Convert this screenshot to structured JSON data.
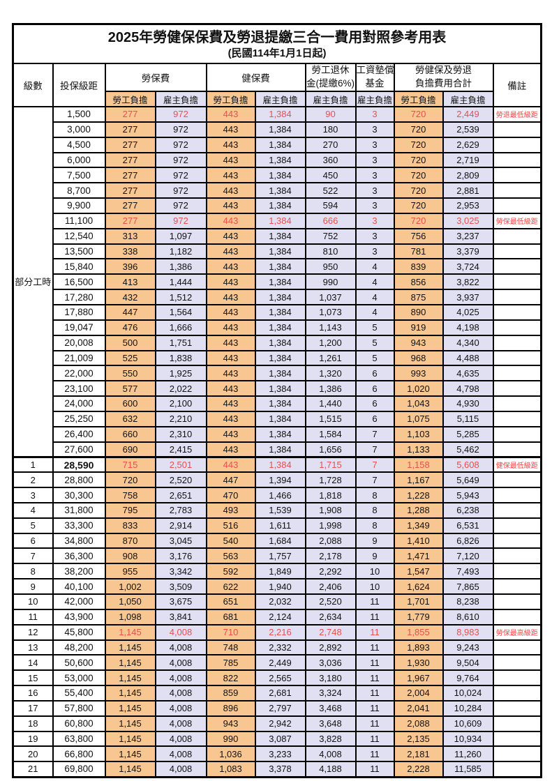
{
  "title": "2025年勞健保保費及勞退提繳三合一費用對照參考用表",
  "subtitle": "(民國114年1月1日起)",
  "header": {
    "level": "級數",
    "salary": "投保級距",
    "labor_ins": "勞保費",
    "health_ins": "健保費",
    "pension_line1": "勞工退休",
    "pension_line2": "金(提繳6%)",
    "wage_fund_line1": "工資墊償",
    "wage_fund_line2": "基金",
    "total_line1": "勞健保及勞退",
    "total_line2": "負擔費用合計",
    "remark": "備註",
    "worker": "勞工負擔",
    "employer": "雇主負擔"
  },
  "part_time_label": "部分工時",
  "part_time_rowspan": 23,
  "colors": {
    "worker_bg": "#F8C690",
    "employer_bg": "#E0E0F2",
    "highlight_red": "#E6504E",
    "remark_red": "#F34343"
  },
  "rows": [
    {
      "level": "",
      "salary": "1,500",
      "values": [
        "277",
        "972",
        "443",
        "1,384",
        "90",
        "3",
        "720",
        "2,449"
      ],
      "remark": "勞退最低級距",
      "red": true
    },
    {
      "level": "",
      "salary": "3,000",
      "values": [
        "277",
        "972",
        "443",
        "1,384",
        "180",
        "3",
        "720",
        "2,539"
      ],
      "remark": "",
      "red": false
    },
    {
      "level": "",
      "salary": "4,500",
      "values": [
        "277",
        "972",
        "443",
        "1,384",
        "270",
        "3",
        "720",
        "2,629"
      ],
      "remark": "",
      "red": false
    },
    {
      "level": "",
      "salary": "6,000",
      "values": [
        "277",
        "972",
        "443",
        "1,384",
        "360",
        "3",
        "720",
        "2,719"
      ],
      "remark": "",
      "red": false
    },
    {
      "level": "",
      "salary": "7,500",
      "values": [
        "277",
        "972",
        "443",
        "1,384",
        "450",
        "3",
        "720",
        "2,809"
      ],
      "remark": "",
      "red": false
    },
    {
      "level": "",
      "salary": "8,700",
      "values": [
        "277",
        "972",
        "443",
        "1,384",
        "522",
        "3",
        "720",
        "2,881"
      ],
      "remark": "",
      "red": false
    },
    {
      "level": "",
      "salary": "9,900",
      "values": [
        "277",
        "972",
        "443",
        "1,384",
        "594",
        "3",
        "720",
        "2,953"
      ],
      "remark": "",
      "red": false
    },
    {
      "level": "",
      "salary": "11,100",
      "values": [
        "277",
        "972",
        "443",
        "1,384",
        "666",
        "3",
        "720",
        "3,025"
      ],
      "remark": "勞保最低級距",
      "red": true
    },
    {
      "level": "",
      "salary": "12,540",
      "values": [
        "313",
        "1,097",
        "443",
        "1,384",
        "752",
        "3",
        "756",
        "3,237"
      ],
      "remark": "",
      "red": false
    },
    {
      "level": "",
      "salary": "13,500",
      "values": [
        "338",
        "1,182",
        "443",
        "1,384",
        "810",
        "3",
        "781",
        "3,379"
      ],
      "remark": "",
      "red": false
    },
    {
      "level": "",
      "salary": "15,840",
      "values": [
        "396",
        "1,386",
        "443",
        "1,384",
        "950",
        "4",
        "839",
        "3,724"
      ],
      "remark": "",
      "red": false
    },
    {
      "level": "",
      "salary": "16,500",
      "values": [
        "413",
        "1,444",
        "443",
        "1,384",
        "990",
        "4",
        "856",
        "3,822"
      ],
      "remark": "",
      "red": false
    },
    {
      "level": "",
      "salary": "17,280",
      "values": [
        "432",
        "1,512",
        "443",
        "1,384",
        "1,037",
        "4",
        "875",
        "3,937"
      ],
      "remark": "",
      "red": false
    },
    {
      "level": "",
      "salary": "17,880",
      "values": [
        "447",
        "1,564",
        "443",
        "1,384",
        "1,073",
        "4",
        "890",
        "4,025"
      ],
      "remark": "",
      "red": false
    },
    {
      "level": "",
      "salary": "19,047",
      "values": [
        "476",
        "1,666",
        "443",
        "1,384",
        "1,143",
        "5",
        "919",
        "4,198"
      ],
      "remark": "",
      "red": false
    },
    {
      "level": "",
      "salary": "20,008",
      "values": [
        "500",
        "1,751",
        "443",
        "1,384",
        "1,200",
        "5",
        "943",
        "4,340"
      ],
      "remark": "",
      "red": false
    },
    {
      "level": "",
      "salary": "21,009",
      "values": [
        "525",
        "1,838",
        "443",
        "1,384",
        "1,261",
        "5",
        "968",
        "4,488"
      ],
      "remark": "",
      "red": false
    },
    {
      "level": "",
      "salary": "22,000",
      "values": [
        "550",
        "1,925",
        "443",
        "1,384",
        "1,320",
        "6",
        "993",
        "4,635"
      ],
      "remark": "",
      "red": false
    },
    {
      "level": "",
      "salary": "23,100",
      "values": [
        "577",
        "2,022",
        "443",
        "1,384",
        "1,386",
        "6",
        "1,020",
        "4,798"
      ],
      "remark": "",
      "red": false
    },
    {
      "level": "",
      "salary": "24,000",
      "values": [
        "600",
        "2,100",
        "443",
        "1,384",
        "1,440",
        "6",
        "1,043",
        "4,930"
      ],
      "remark": "",
      "red": false
    },
    {
      "level": "",
      "salary": "25,250",
      "values": [
        "632",
        "2,210",
        "443",
        "1,384",
        "1,515",
        "6",
        "1,075",
        "5,115"
      ],
      "remark": "",
      "red": false
    },
    {
      "level": "",
      "salary": "26,400",
      "values": [
        "660",
        "2,310",
        "443",
        "1,384",
        "1,584",
        "7",
        "1,103",
        "5,285"
      ],
      "remark": "",
      "red": false
    },
    {
      "level": "",
      "salary": "27,600",
      "values": [
        "690",
        "2,415",
        "443",
        "1,384",
        "1,656",
        "7",
        "1,133",
        "5,462"
      ],
      "remark": "",
      "red": false
    },
    {
      "level": "1",
      "salary": "28,590",
      "values": [
        "715",
        "2,501",
        "443",
        "1,384",
        "1,715",
        "7",
        "1,158",
        "5,608"
      ],
      "remark": "健保最低級距",
      "red": true,
      "section_start": true,
      "salary_bold": true
    },
    {
      "level": "2",
      "salary": "28,800",
      "values": [
        "720",
        "2,520",
        "447",
        "1,394",
        "1,728",
        "7",
        "1,167",
        "5,649"
      ],
      "remark": "",
      "red": false
    },
    {
      "level": "3",
      "salary": "30,300",
      "values": [
        "758",
        "2,651",
        "470",
        "1,466",
        "1,818",
        "8",
        "1,228",
        "5,943"
      ],
      "remark": "",
      "red": false
    },
    {
      "level": "4",
      "salary": "31,800",
      "values": [
        "795",
        "2,783",
        "493",
        "1,539",
        "1,908",
        "8",
        "1,288",
        "6,238"
      ],
      "remark": "",
      "red": false
    },
    {
      "level": "5",
      "salary": "33,300",
      "values": [
        "833",
        "2,914",
        "516",
        "1,611",
        "1,998",
        "8",
        "1,349",
        "6,531"
      ],
      "remark": "",
      "red": false
    },
    {
      "level": "6",
      "salary": "34,800",
      "values": [
        "870",
        "3,045",
        "540",
        "1,684",
        "2,088",
        "9",
        "1,410",
        "6,826"
      ],
      "remark": "",
      "red": false
    },
    {
      "level": "7",
      "salary": "36,300",
      "values": [
        "908",
        "3,176",
        "563",
        "1,757",
        "2,178",
        "9",
        "1,471",
        "7,120"
      ],
      "remark": "",
      "red": false
    },
    {
      "level": "8",
      "salary": "38,200",
      "values": [
        "955",
        "3,342",
        "592",
        "1,849",
        "2,292",
        "10",
        "1,547",
        "7,493"
      ],
      "remark": "",
      "red": false
    },
    {
      "level": "9",
      "salary": "40,100",
      "values": [
        "1,002",
        "3,509",
        "622",
        "1,940",
        "2,406",
        "10",
        "1,624",
        "7,865"
      ],
      "remark": "",
      "red": false
    },
    {
      "level": "10",
      "salary": "42,000",
      "values": [
        "1,050",
        "3,675",
        "651",
        "2,032",
        "2,520",
        "11",
        "1,701",
        "8,238"
      ],
      "remark": "",
      "red": false
    },
    {
      "level": "11",
      "salary": "43,900",
      "values": [
        "1,098",
        "3,841",
        "681",
        "2,124",
        "2,634",
        "11",
        "1,779",
        "8,610"
      ],
      "remark": "",
      "red": false
    },
    {
      "level": "12",
      "salary": "45,800",
      "values": [
        "1,145",
        "4,008",
        "710",
        "2,216",
        "2,748",
        "11",
        "1,855",
        "8,983"
      ],
      "remark": "勞保最高級距",
      "red": true
    },
    {
      "level": "13",
      "salary": "48,200",
      "values": [
        "1,145",
        "4,008",
        "748",
        "2,332",
        "2,892",
        "11",
        "1,893",
        "9,243"
      ],
      "remark": "",
      "red": false
    },
    {
      "level": "14",
      "salary": "50,600",
      "values": [
        "1,145",
        "4,008",
        "785",
        "2,449",
        "3,036",
        "11",
        "1,930",
        "9,504"
      ],
      "remark": "",
      "red": false
    },
    {
      "level": "15",
      "salary": "53,000",
      "values": [
        "1,145",
        "4,008",
        "822",
        "2,565",
        "3,180",
        "11",
        "1,967",
        "9,764"
      ],
      "remark": "",
      "red": false
    },
    {
      "level": "16",
      "salary": "55,400",
      "values": [
        "1,145",
        "4,008",
        "859",
        "2,681",
        "3,324",
        "11",
        "2,004",
        "10,024"
      ],
      "remark": "",
      "red": false
    },
    {
      "level": "17",
      "salary": "57,800",
      "values": [
        "1,145",
        "4,008",
        "896",
        "2,797",
        "3,468",
        "11",
        "2,041",
        "10,284"
      ],
      "remark": "",
      "red": false
    },
    {
      "level": "18",
      "salary": "60,800",
      "values": [
        "1,145",
        "4,008",
        "943",
        "2,942",
        "3,648",
        "11",
        "2,088",
        "10,609"
      ],
      "remark": "",
      "red": false
    },
    {
      "level": "19",
      "salary": "63,800",
      "values": [
        "1,145",
        "4,008",
        "990",
        "3,087",
        "3,828",
        "11",
        "2,135",
        "10,934"
      ],
      "remark": "",
      "red": false
    },
    {
      "level": "20",
      "salary": "66,800",
      "values": [
        "1,145",
        "4,008",
        "1,036",
        "3,233",
        "4,008",
        "11",
        "2,181",
        "11,260"
      ],
      "remark": "",
      "red": false
    },
    {
      "level": "21",
      "salary": "69,800",
      "values": [
        "1,145",
        "4,008",
        "1,083",
        "3,378",
        "4,188",
        "11",
        "2,228",
        "11,585"
      ],
      "remark": "",
      "red": false
    }
  ]
}
